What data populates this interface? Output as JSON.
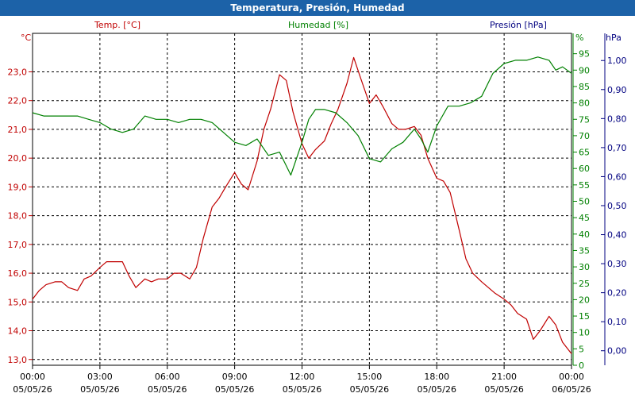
{
  "window": {
    "title": "Temperatura, Presión, Humedad"
  },
  "colors": {
    "temp": "#c00000",
    "hum": "#008000",
    "pres": "#000080",
    "grid": "#000000",
    "titlebar": "#1c62a8"
  },
  "chart_data": {
    "type": "line",
    "title": "Temperatura, Presión, Humedad",
    "grid": true,
    "x_ticks": [
      {
        "time": "00:00",
        "date": "05/05/26"
      },
      {
        "time": "03:00",
        "date": "05/05/26"
      },
      {
        "time": "06:00",
        "date": "05/05/26"
      },
      {
        "time": "09:00",
        "date": "05/05/26"
      },
      {
        "time": "12:00",
        "date": "05/05/26"
      },
      {
        "time": "15:00",
        "date": "05/05/26"
      },
      {
        "time": "18:00",
        "date": "05/05/26"
      },
      {
        "time": "21:00",
        "date": "05/05/26"
      },
      {
        "time": "00:00",
        "date": "06/05/26"
      }
    ],
    "axes": {
      "temp": {
        "label": "Temp. [°C]",
        "unit": "°C",
        "range": [
          12.8,
          24.2
        ],
        "ticks": [
          "13,0",
          "14,0",
          "15,0",
          "16,0",
          "17,0",
          "18,0",
          "19,0",
          "20,0",
          "21,0",
          "22,0",
          "23,0"
        ]
      },
      "hum": {
        "label": "Humedad [%]",
        "unit": "%",
        "range": [
          0,
          100
        ],
        "ticks": [
          "0",
          "5",
          "10",
          "15",
          "20",
          "25",
          "30",
          "35",
          "40",
          "45",
          "50",
          "55",
          "60",
          "65",
          "70",
          "75",
          "80",
          "85",
          "90",
          "95"
        ]
      },
      "pres": {
        "label": "Presión [hPa]",
        "unit": "hPa",
        "range": [
          -0.05,
          1.08
        ],
        "ticks": [
          "0,00",
          "0,10",
          "0,20",
          "0,30",
          "0,40",
          "0,50",
          "0,60",
          "0,70",
          "0,80",
          "0,90",
          "1,00"
        ]
      }
    },
    "series": [
      {
        "name": "Temp. [°C]",
        "axis": "temp",
        "hours": [
          0,
          0.3,
          0.6,
          1,
          1.3,
          1.6,
          2,
          2.3,
          2.6,
          3,
          3.3,
          3.6,
          4,
          4.3,
          4.6,
          5,
          5.3,
          5.6,
          6,
          6.3,
          6.6,
          7,
          7.3,
          7.6,
          8,
          8.3,
          8.6,
          9,
          9.3,
          9.6,
          10,
          10.3,
          10.6,
          11,
          11.3,
          11.6,
          12,
          12.3,
          12.6,
          13,
          13.3,
          13.6,
          14,
          14.3,
          14.6,
          15,
          15.3,
          15.6,
          16,
          16.3,
          16.6,
          17,
          17.3,
          17.6,
          18,
          18.3,
          18.6,
          19,
          19.3,
          19.6,
          20,
          20.3,
          20.6,
          21,
          21.3,
          21.6,
          22,
          22.3,
          22.6,
          23,
          23.3,
          23.6,
          24
        ],
        "values": [
          15.1,
          15.4,
          15.6,
          15.7,
          15.7,
          15.5,
          15.4,
          15.8,
          15.9,
          16.2,
          16.4,
          16.4,
          16.4,
          15.9,
          15.5,
          15.8,
          15.7,
          15.8,
          15.8,
          16.0,
          16.0,
          15.8,
          16.2,
          17.2,
          18.3,
          18.6,
          19.0,
          19.5,
          19.1,
          18.9,
          19.9,
          21.0,
          21.7,
          22.9,
          22.7,
          21.6,
          20.5,
          20.0,
          20.3,
          20.6,
          21.2,
          21.7,
          22.6,
          23.5,
          22.8,
          21.9,
          22.2,
          21.8,
          21.2,
          21.0,
          21.0,
          21.1,
          20.8,
          20.0,
          19.3,
          19.2,
          18.8,
          17.5,
          16.5,
          16.0,
          15.7,
          15.5,
          15.3,
          15.1,
          14.9,
          14.6,
          14.4,
          13.7,
          14.0,
          14.5,
          14.2,
          13.6,
          13.2
        ]
      },
      {
        "name": "Humedad [%]",
        "axis": "hum",
        "hours": [
          0,
          0.5,
          1,
          1.5,
          2,
          2.5,
          3,
          3.5,
          4,
          4.5,
          5,
          5.5,
          6,
          6.5,
          7,
          7.5,
          8,
          8.5,
          9,
          9.5,
          10,
          10.5,
          11,
          11.5,
          12,
          12.3,
          12.6,
          13,
          13.5,
          14,
          14.5,
          15,
          15.5,
          16,
          16.5,
          17,
          17.3,
          17.6,
          18,
          18.5,
          19,
          19.5,
          20,
          20.5,
          21,
          21.5,
          22,
          22.5,
          23,
          23.3,
          23.6,
          24
        ],
        "values": [
          77,
          76,
          76,
          76,
          76,
          75,
          74,
          72,
          71,
          72,
          76,
          75,
          75,
          74,
          75,
          75,
          74,
          71,
          68,
          67,
          69,
          64,
          65,
          58,
          68,
          75,
          78,
          78,
          77,
          74,
          70,
          63,
          62,
          66,
          68,
          72,
          69,
          65,
          73,
          79,
          79,
          80,
          82,
          89,
          92,
          93,
          93,
          94,
          93,
          90,
          91,
          89
        ]
      }
    ]
  }
}
